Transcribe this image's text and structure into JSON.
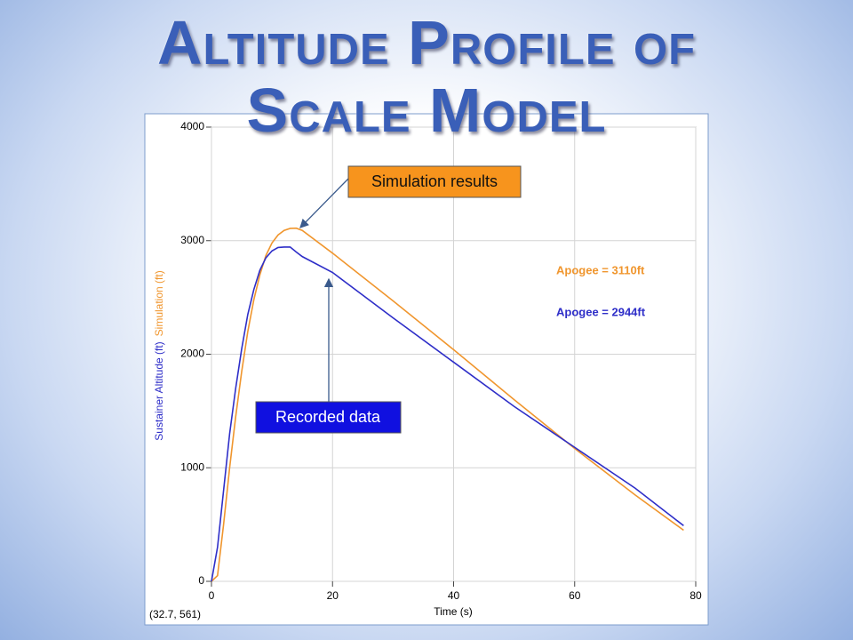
{
  "title": "Altitude Profile of Scale Model",
  "chart_data": {
    "type": "line",
    "x_label": "Time (s)",
    "x": [
      0,
      1,
      2,
      3,
      4,
      5,
      6,
      7,
      8,
      9,
      10,
      11,
      12,
      13,
      14,
      15,
      20,
      30,
      40,
      50,
      60,
      70,
      78
    ],
    "series": [
      {
        "name": "Simulation (ft)",
        "color": "#f0962e",
        "values": [
          0,
          50,
          500,
          1000,
          1450,
          1850,
          2200,
          2480,
          2700,
          2870,
          2980,
          3050,
          3090,
          3108,
          3110,
          3090,
          2890,
          2470,
          2040,
          1600,
          1170,
          760,
          450
        ]
      },
      {
        "name": "Sustainer Altitude (ft)",
        "color": "#2e2ec8",
        "values": [
          0,
          300,
          800,
          1300,
          1700,
          2050,
          2350,
          2570,
          2740,
          2850,
          2910,
          2940,
          2944,
          2944,
          2900,
          2860,
          2720,
          2320,
          1930,
          1540,
          1180,
          820,
          490
        ]
      }
    ],
    "xlim": [
      0,
      80
    ],
    "xticks": [
      0,
      20,
      40,
      60,
      80
    ],
    "ylim": [
      0,
      4000
    ],
    "yticks": [
      0,
      1000,
      2000,
      3000,
      4000
    ],
    "grid": true,
    "annotations": {
      "simulation_callout": "Simulation results",
      "recorded_callout": "Recorded data",
      "apogee_simulation": "Apogee = 3110ft",
      "apogee_recorded": "Apogee = 2944ft"
    },
    "cursor_readout": "(32.7, 561)"
  }
}
